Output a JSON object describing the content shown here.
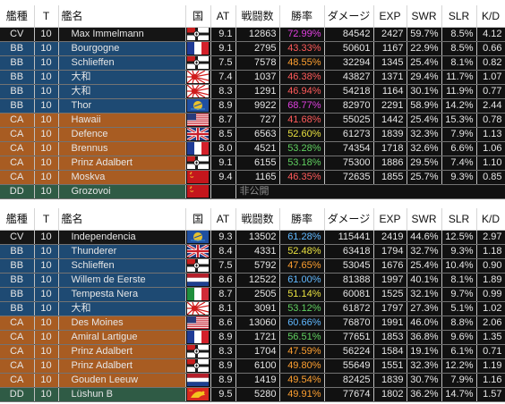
{
  "columns": [
    "艦種",
    "T",
    "艦名",
    "国",
    "AT",
    "戦闘数",
    "勝率",
    "ダメージ",
    "EXP",
    "SWR",
    "SLR",
    "K/D"
  ],
  "colors": {
    "cv": "#151515",
    "bb": "#1e4a73",
    "ca": "#a85c22",
    "dd": "#2f5b45",
    "win_magenta": "#e040e0",
    "win_red": "#ff5a5a",
    "win_orange": "#ffa030",
    "win_yellow": "#e8e040",
    "win_green": "#60d060",
    "win_blue": "#60b8ff",
    "hidden_text": "#8e8e8e"
  },
  "teams": [
    {
      "rows": [
        {
          "cls": "cv",
          "type": "CV",
          "tier": "10",
          "name": "Max Immelmann",
          "flag": "germany-flag",
          "at": "9.1",
          "battles": "12863",
          "winrate": "72.99%",
          "wr_color": "win_magenta",
          "damage": "84542",
          "exp": "2427",
          "swr": "59.7%",
          "slr": "8.5%",
          "kd": "4.12"
        },
        {
          "cls": "bb",
          "type": "BB",
          "tier": "10",
          "name": "Bourgogne",
          "flag": "france-flag",
          "at": "9.1",
          "battles": "2795",
          "winrate": "43.33%",
          "wr_color": "win_red",
          "damage": "50601",
          "exp": "1167",
          "swr": "22.9%",
          "slr": "8.5%",
          "kd": "0.66"
        },
        {
          "cls": "bb",
          "type": "BB",
          "tier": "10",
          "name": "Schlieffen",
          "flag": "germany-flag",
          "at": "7.5",
          "battles": "7578",
          "winrate": "48.55%",
          "wr_color": "win_orange",
          "damage": "32294",
          "exp": "1345",
          "swr": "25.4%",
          "slr": "8.1%",
          "kd": "0.82"
        },
        {
          "cls": "bb",
          "type": "BB",
          "tier": "10",
          "name": "大和",
          "flag": "japan-flag",
          "at": "7.4",
          "battles": "1037",
          "winrate": "46.38%",
          "wr_color": "win_red",
          "damage": "43827",
          "exp": "1371",
          "swr": "29.4%",
          "slr": "11.7%",
          "kd": "1.07"
        },
        {
          "cls": "bb",
          "type": "BB",
          "tier": "10",
          "name": "大和",
          "flag": "japan-flag",
          "at": "8.3",
          "battles": "1291",
          "winrate": "46.94%",
          "wr_color": "win_red",
          "damage": "54218",
          "exp": "1164",
          "swr": "30.1%",
          "slr": "11.9%",
          "kd": "0.77"
        },
        {
          "cls": "bb",
          "type": "BB",
          "tier": "10",
          "name": "Thor",
          "flag": "panamerica-flag",
          "at": "8.9",
          "battles": "9922",
          "winrate": "68.77%",
          "wr_color": "win_magenta",
          "damage": "82970",
          "exp": "2291",
          "swr": "58.9%",
          "slr": "14.2%",
          "kd": "2.44"
        },
        {
          "cls": "ca",
          "type": "CA",
          "tier": "10",
          "name": "Hawaii",
          "flag": "usa-flag",
          "at": "8.7",
          "battles": "727",
          "winrate": "41.68%",
          "wr_color": "win_red",
          "damage": "55025",
          "exp": "1442",
          "swr": "25.4%",
          "slr": "15.3%",
          "kd": "0.78"
        },
        {
          "cls": "ca",
          "type": "CA",
          "tier": "10",
          "name": "Defence",
          "flag": "uk-flag",
          "at": "8.5",
          "battles": "6563",
          "winrate": "52.60%",
          "wr_color": "win_yellow",
          "damage": "61273",
          "exp": "1839",
          "swr": "32.3%",
          "slr": "7.9%",
          "kd": "1.13"
        },
        {
          "cls": "ca",
          "type": "CA",
          "tier": "10",
          "name": "Brennus",
          "flag": "france-flag",
          "at": "8.0",
          "battles": "4521",
          "winrate": "53.28%",
          "wr_color": "win_green",
          "damage": "74354",
          "exp": "1718",
          "swr": "32.6%",
          "slr": "6.6%",
          "kd": "1.06"
        },
        {
          "cls": "ca",
          "type": "CA",
          "tier": "10",
          "name": "Prinz Adalbert",
          "flag": "germany-flag",
          "at": "9.1",
          "battles": "6155",
          "winrate": "53.18%",
          "wr_color": "win_green",
          "damage": "75300",
          "exp": "1886",
          "swr": "29.5%",
          "slr": "7.4%",
          "kd": "1.10"
        },
        {
          "cls": "ca",
          "type": "CA",
          "tier": "10",
          "name": "Moskva",
          "flag": "ussr-flag",
          "at": "9.4",
          "battles": "1165",
          "winrate": "46.35%",
          "wr_color": "win_red",
          "damage": "72635",
          "exp": "1855",
          "swr": "25.7%",
          "slr": "9.3%",
          "kd": "0.85"
        },
        {
          "cls": "dd",
          "type": "DD",
          "tier": "10",
          "name": "Grozovoi",
          "flag": "ussr-flag",
          "hidden": "非公開"
        }
      ]
    },
    {
      "rows": [
        {
          "cls": "cv",
          "type": "CV",
          "tier": "10",
          "name": "Independencia",
          "flag": "panamerica-flag",
          "at": "9.3",
          "battles": "13502",
          "winrate": "61.28%",
          "wr_color": "win_blue",
          "damage": "115441",
          "exp": "2419",
          "swr": "44.6%",
          "slr": "12.5%",
          "kd": "2.97"
        },
        {
          "cls": "bb",
          "type": "BB",
          "tier": "10",
          "name": "Thunderer",
          "flag": "uk-flag",
          "at": "8.4",
          "battles": "4331",
          "winrate": "52.48%",
          "wr_color": "win_yellow",
          "damage": "63418",
          "exp": "1794",
          "swr": "32.7%",
          "slr": "9.3%",
          "kd": "1.18"
        },
        {
          "cls": "bb",
          "type": "BB",
          "tier": "10",
          "name": "Schlieffen",
          "flag": "germany-flag",
          "at": "7.5",
          "battles": "5792",
          "winrate": "47.65%",
          "wr_color": "win_orange",
          "damage": "53045",
          "exp": "1676",
          "swr": "25.4%",
          "slr": "10.4%",
          "kd": "0.90"
        },
        {
          "cls": "bb",
          "type": "BB",
          "tier": "10",
          "name": "Willem de Eerste",
          "flag": "netherlands-flag",
          "at": "8.6",
          "battles": "12522",
          "winrate": "61.00%",
          "wr_color": "win_blue",
          "damage": "81388",
          "exp": "1997",
          "swr": "40.1%",
          "slr": "8.1%",
          "kd": "1.89"
        },
        {
          "cls": "bb",
          "type": "BB",
          "tier": "10",
          "name": "Tempesta Nera",
          "flag": "italy-flag",
          "at": "8.7",
          "battles": "2505",
          "winrate": "51.14%",
          "wr_color": "win_yellow",
          "damage": "60081",
          "exp": "1525",
          "swr": "32.1%",
          "slr": "9.7%",
          "kd": "0.99"
        },
        {
          "cls": "bb",
          "type": "BB",
          "tier": "10",
          "name": "大和",
          "flag": "japan-flag",
          "at": "8.1",
          "battles": "3091",
          "winrate": "53.12%",
          "wr_color": "win_green",
          "damage": "61872",
          "exp": "1797",
          "swr": "27.3%",
          "slr": "5.1%",
          "kd": "1.02"
        },
        {
          "cls": "ca",
          "type": "CA",
          "tier": "10",
          "name": "Des Moines",
          "flag": "usa-flag",
          "at": "8.6",
          "battles": "13060",
          "winrate": "60.66%",
          "wr_color": "win_blue",
          "damage": "76870",
          "exp": "1991",
          "swr": "46.0%",
          "slr": "8.8%",
          "kd": "2.06"
        },
        {
          "cls": "ca",
          "type": "CA",
          "tier": "10",
          "name": "Amiral Lartigue",
          "flag": "france-flag",
          "at": "8.9",
          "battles": "1721",
          "winrate": "56.51%",
          "wr_color": "win_green",
          "damage": "77651",
          "exp": "1853",
          "swr": "36.8%",
          "slr": "9.6%",
          "kd": "1.35"
        },
        {
          "cls": "ca",
          "type": "CA",
          "tier": "10",
          "name": "Prinz Adalbert",
          "flag": "germany-flag",
          "at": "8.3",
          "battles": "1704",
          "winrate": "47.59%",
          "wr_color": "win_orange",
          "damage": "56224",
          "exp": "1584",
          "swr": "19.1%",
          "slr": "6.1%",
          "kd": "0.71"
        },
        {
          "cls": "ca",
          "type": "CA",
          "tier": "10",
          "name": "Prinz Adalbert",
          "flag": "germany-flag",
          "at": "8.9",
          "battles": "6100",
          "winrate": "49.80%",
          "wr_color": "win_orange",
          "damage": "55649",
          "exp": "1551",
          "swr": "32.3%",
          "slr": "12.2%",
          "kd": "1.19"
        },
        {
          "cls": "ca",
          "type": "CA",
          "tier": "10",
          "name": "Gouden Leeuw",
          "flag": "netherlands-flag",
          "at": "8.9",
          "battles": "1419",
          "winrate": "49.54%",
          "wr_color": "win_orange",
          "damage": "82425",
          "exp": "1839",
          "swr": "30.7%",
          "slr": "7.9%",
          "kd": "1.16"
        },
        {
          "cls": "dd",
          "type": "DD",
          "tier": "10",
          "name": "Lüshun B",
          "flag": "china-flag",
          "at": "9.5",
          "battles": "5280",
          "winrate": "49.91%",
          "wr_color": "win_orange",
          "damage": "77674",
          "exp": "1802",
          "swr": "36.2%",
          "slr": "14.7%",
          "kd": "1.57"
        }
      ]
    }
  ]
}
